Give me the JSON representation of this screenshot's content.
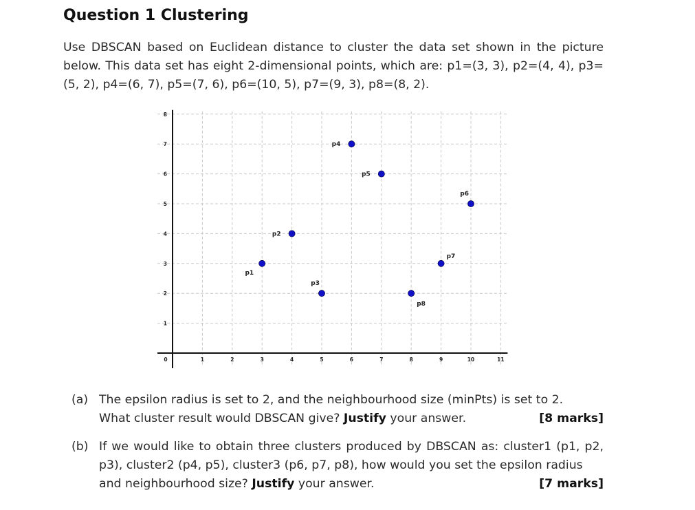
{
  "heading": "Question 1 Clustering",
  "intro": "Use DBSCAN based on Euclidean distance to cluster the data set shown in the picture below. This data set has eight 2-dimensional points, which are: p1=(3, 3), p2=(4, 4), p3=(5, 2), p4=(6, 7), p5=(7, 6), p6=(10, 5), p7=(9, 3), p8=(8, 2).",
  "chart_data": {
    "type": "scatter",
    "title": "",
    "xlabel": "",
    "ylabel": "",
    "xlim": [
      0,
      11
    ],
    "ylim": [
      0,
      8
    ],
    "x_ticks": [
      "0",
      "1",
      "2",
      "3",
      "4",
      "5",
      "6",
      "7",
      "8",
      "9",
      "10",
      "11"
    ],
    "y_ticks": [
      "1",
      "2",
      "3",
      "4",
      "5",
      "6",
      "7",
      "8"
    ],
    "grid": true,
    "point_color": "#1010c8",
    "points": [
      {
        "label": "p1",
        "x": 3,
        "y": 3,
        "label_pos": "below-left"
      },
      {
        "label": "p2",
        "x": 4,
        "y": 4,
        "label_pos": "left"
      },
      {
        "label": "p3",
        "x": 5,
        "y": 2,
        "label_pos": "above-left"
      },
      {
        "label": "p4",
        "x": 6,
        "y": 7,
        "label_pos": "left"
      },
      {
        "label": "p5",
        "x": 7,
        "y": 6,
        "label_pos": "left"
      },
      {
        "label": "p6",
        "x": 10,
        "y": 5,
        "label_pos": "above-left"
      },
      {
        "label": "p7",
        "x": 9,
        "y": 3,
        "label_pos": "above-right"
      },
      {
        "label": "p8",
        "x": 8,
        "y": 2,
        "label_pos": "below-right"
      }
    ]
  },
  "questions": [
    {
      "label": "(a)",
      "line1": "The epsilon radius is set to 2, and the neighbourhood size (minPts) is set to 2.",
      "pre": "What cluster result would DBSCAN give? ",
      "bold": "Justify",
      "post": " your answer.",
      "marks": "[8 marks]"
    },
    {
      "label": "(b)",
      "line1": "If we would like to obtain three clusters produced by DBSCAN as: cluster1 (p1, p2, p3), cluster2 (p4, p5), cluster3 (p6, p7, p8), how would you set the epsilon radius",
      "pre": "and neighbourhood size? ",
      "bold": "Justify",
      "post": " your answer.",
      "marks": "[7 marks]"
    }
  ]
}
